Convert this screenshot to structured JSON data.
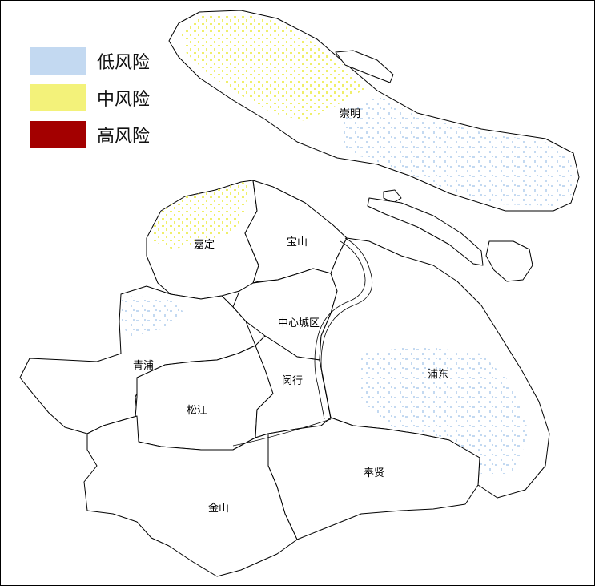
{
  "legend": [
    {
      "label": "低风险",
      "color": "#c3d9f1"
    },
    {
      "label": "中风险",
      "color": "#f3f27a"
    },
    {
      "label": "高风险",
      "color": "#a30000"
    }
  ],
  "districts": {
    "chongming": "崇明",
    "jiading": "嘉定",
    "baoshan": "宝山",
    "central": "中心城区",
    "qingpu": "青浦",
    "minhang": "闵行",
    "pudong": "浦东",
    "songjiang": "松江",
    "fengxian": "奉贤",
    "jinshan": "金山"
  }
}
